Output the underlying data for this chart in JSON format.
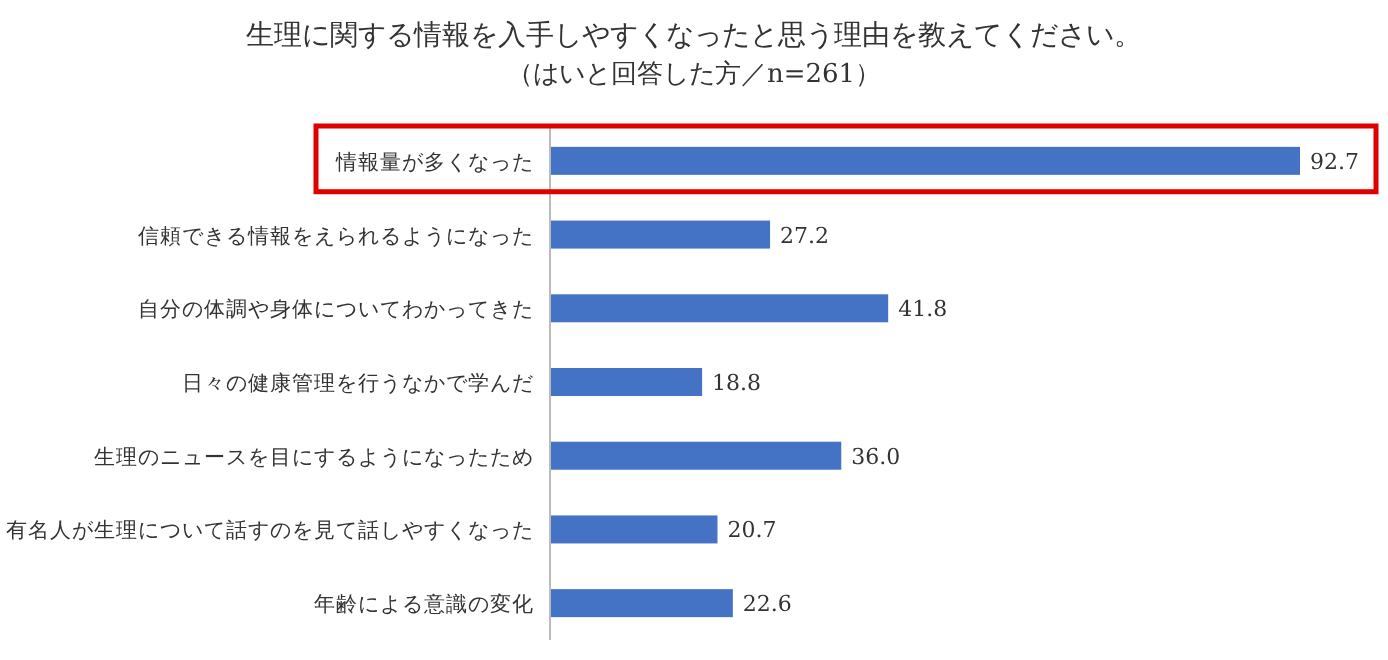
{
  "chart_data": {
    "type": "bar",
    "orientation": "horizontal",
    "title": "生理に関する情報を入手しやすくなったと思う理由を教えてください。",
    "subtitle": "（はいと回答した方／n=261）",
    "categories": [
      "情報量が多くなった",
      "信頼できる情報をえられるようになった",
      "自分の体調や身体についてわかってきた",
      "日々の健康管理を行うなかで学んだ",
      "生理のニュースを目にするようになったため",
      "有名人が生理について話すのを見て話しやすくなった",
      "年齢による意識の変化"
    ],
    "values": [
      92.7,
      27.2,
      41.8,
      18.8,
      36.0,
      20.7,
      22.6
    ],
    "value_labels": [
      "92.7",
      "27.2",
      "41.8",
      "18.8",
      "36.0",
      "20.7",
      "22.6"
    ],
    "color": "#4472c4"
  }
}
